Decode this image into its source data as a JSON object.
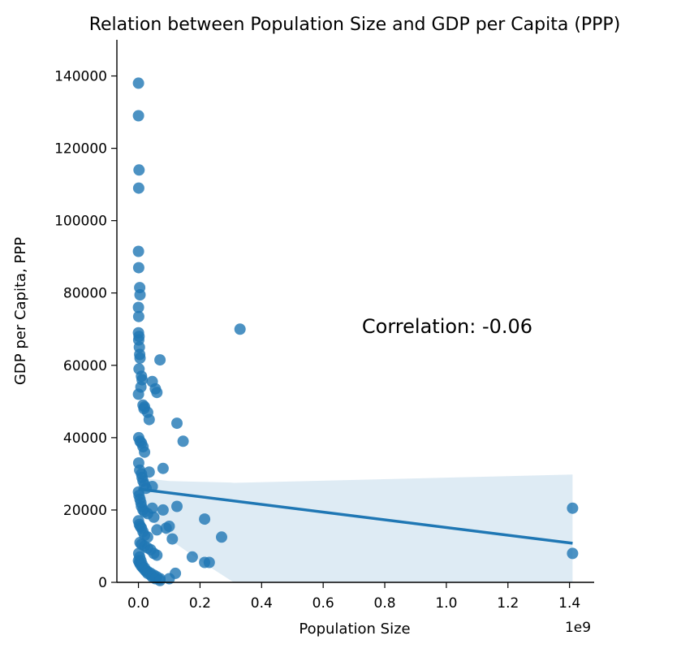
{
  "chart_data": {
    "type": "scatter",
    "title": "Relation between Population Size and GDP per Capita (PPP)",
    "xlabel": "Population Size",
    "ylabel": "GDP per Capita, PPP",
    "x_offset_label": "1e9",
    "annotation": "Correlation: -0.06",
    "xlim": [
      -0.07,
      1.48
    ],
    "ylim": [
      0,
      150000
    ],
    "x_ticks": [
      0.0,
      0.2,
      0.4,
      0.6,
      0.8,
      1.0,
      1.2,
      1.4
    ],
    "x_tick_labels": [
      "0.0",
      "0.2",
      "0.4",
      "0.6",
      "0.8",
      "1.0",
      "1.2",
      "1.4"
    ],
    "y_ticks": [
      0,
      20000,
      40000,
      60000,
      80000,
      100000,
      120000,
      140000
    ],
    "y_tick_labels": [
      "0",
      "20000",
      "40000",
      "60000",
      "80000",
      "100000",
      "120000",
      "140000"
    ],
    "grid": false,
    "colors": {
      "point": "#1f77b4",
      "line": "#1f77b4",
      "band": "#1f77b4"
    },
    "regression": {
      "x": [
        0.0,
        1.41
      ],
      "y": [
        25800,
        10800
      ]
    },
    "confidence_band": {
      "x": [
        0.0,
        0.05,
        0.1,
        0.2,
        0.3,
        0.31,
        1.41
      ],
      "upper": [
        29000,
        28500,
        28000,
        27800,
        27600,
        27500,
        29800
      ],
      "lower": [
        21000,
        16500,
        12000,
        6000,
        500,
        0,
        0
      ]
    },
    "series": [
      {
        "x": [
          0.0,
          0.0,
          0.002,
          0.001,
          0.0,
          0.001,
          0.004,
          0.005,
          0.0,
          0.001,
          0.0,
          0.002,
          0.001,
          0.003,
          0.004,
          0.005,
          0.01,
          0.012,
          0.002,
          0.008,
          0.0,
          0.015,
          0.018,
          0.02,
          0.03,
          0.035,
          0.001,
          0.005,
          0.01,
          0.015,
          0.02,
          0.045,
          0.055,
          0.07,
          0.06,
          0.001,
          0.004,
          0.01,
          0.012,
          0.015,
          0.02,
          0.025,
          0.035,
          0.045,
          0.125,
          0.145,
          0.08,
          0.0,
          0.002,
          0.005,
          0.008,
          0.01,
          0.015,
          0.02,
          0.03,
          0.045,
          0.0,
          0.003,
          0.006,
          0.01,
          0.015,
          0.02,
          0.03,
          0.05,
          0.06,
          0.08,
          0.005,
          0.01,
          0.02,
          0.03,
          0.04,
          0.05,
          0.06,
          0.09,
          0.1,
          0.215,
          0.27,
          0.125,
          0.0,
          0.003,
          0.006,
          0.01,
          0.015,
          0.02,
          0.03,
          0.04,
          0.05,
          0.06,
          0.07,
          0.175,
          0.215,
          0.23,
          0.001,
          0.004,
          0.008,
          0.012,
          0.02,
          0.025,
          0.03,
          0.04,
          0.045,
          0.055,
          0.07,
          0.11,
          0.1,
          0.12,
          0.33,
          1.41,
          1.41
        ],
        "y": [
          138000,
          129000,
          114000,
          109000,
          91500,
          87000,
          81500,
          79500,
          76000,
          73500,
          69000,
          68000,
          67000,
          65000,
          63000,
          62000,
          57000,
          56000,
          59000,
          54000,
          52000,
          49000,
          48000,
          48500,
          47000,
          45000,
          40000,
          39000,
          38500,
          37500,
          36000,
          55500,
          53500,
          61500,
          52500,
          33000,
          31000,
          30000,
          29000,
          28000,
          27000,
          26000,
          30500,
          26500,
          44000,
          39000,
          31500,
          25000,
          24000,
          23000,
          22000,
          21000,
          20000,
          19500,
          19000,
          20500,
          17000,
          16000,
          15500,
          15000,
          14000,
          13000,
          12500,
          18000,
          14500,
          20000,
          11000,
          10500,
          10000,
          9500,
          9000,
          8000,
          7500,
          15000,
          15500,
          17500,
          12500,
          21000,
          6000,
          5500,
          5000,
          4500,
          4000,
          3500,
          3000,
          2500,
          2000,
          1500,
          1000,
          7000,
          5500,
          5500,
          8000,
          7000,
          6000,
          5000,
          4000,
          3000,
          2500,
          2000,
          1500,
          1000,
          500,
          12000,
          1000,
          2500,
          70000,
          20500,
          8000
        ]
      }
    ]
  }
}
